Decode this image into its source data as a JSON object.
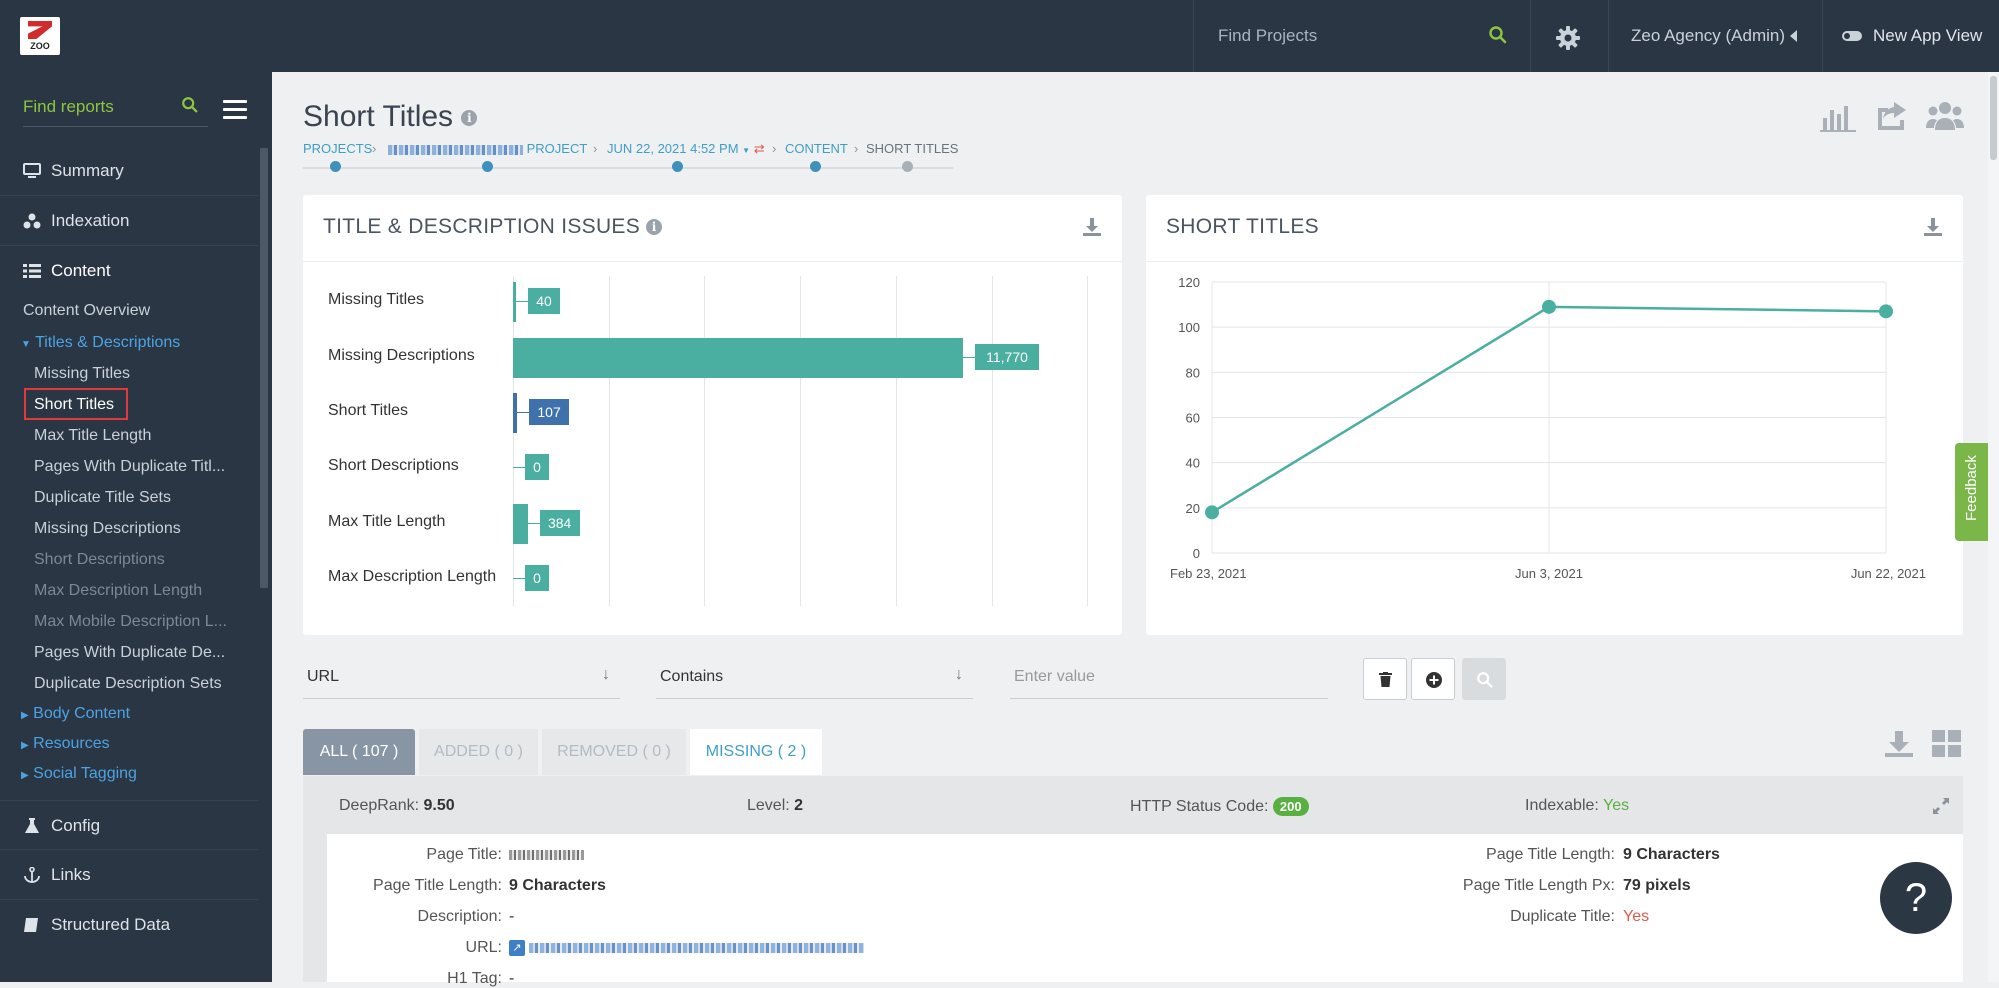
{
  "topbar": {
    "logo_text": "ZOO",
    "search_placeholder": "Find Projects",
    "account_label": "Zeo Agency (Admin)",
    "new_app_view_label": "New App View"
  },
  "sidebar": {
    "find_placeholder": "Find reports",
    "sections": [
      {
        "label": "Summary",
        "icon": "monitor-icon"
      },
      {
        "label": "Indexation",
        "icon": "network-icon"
      },
      {
        "label": "Content",
        "icon": "list-icon"
      }
    ],
    "content_overview": "Content Overview",
    "titles_group": "Titles & Descriptions",
    "title_items": [
      "Missing Titles",
      "Short Titles",
      "Max Title Length",
      "Pages With Duplicate Titl...",
      "Duplicate Title Sets",
      "Missing Descriptions",
      "Short Descriptions",
      "Max Description Length",
      "Max Mobile Description L...",
      "Pages With Duplicate De...",
      "Duplicate Description Sets"
    ],
    "groups": [
      "Body Content",
      "Resources",
      "Social Tagging"
    ],
    "bottom_sections": [
      {
        "label": "Config",
        "icon": "flask-icon"
      },
      {
        "label": "Links",
        "icon": "anchor-icon"
      },
      {
        "label": "Structured Data",
        "icon": "book-icon"
      }
    ],
    "active_item": "Short Titles"
  },
  "page": {
    "title": "Short Titles",
    "breadcrumb": [
      "PROJECTS",
      "PROJECT",
      "JUN 22, 2021 4:52 PM",
      "CONTENT",
      "SHORT TITLES"
    ]
  },
  "issues_card": {
    "title": "TITLE & DESCRIPTION ISSUES"
  },
  "short_titles_card": {
    "title": "SHORT TITLES"
  },
  "chart_data": [
    {
      "type": "bar",
      "orientation": "horizontal",
      "categories": [
        "Missing Titles",
        "Missing Descriptions",
        "Short Titles",
        "Short Descriptions",
        "Max Title Length",
        "Max Description Length"
      ],
      "values": [
        40,
        11770,
        107,
        0,
        384,
        0
      ],
      "value_labels": [
        "40",
        "11,770",
        "107",
        "0",
        "384",
        "0"
      ],
      "colors": [
        "#4aaea1",
        "#4aaea1",
        "#3f72ad",
        "#4aaea1",
        "#4aaea1",
        "#4aaea1"
      ],
      "grid": true
    },
    {
      "type": "line",
      "x": [
        "Feb 23, 2021",
        "Jun 3, 2021",
        "Jun 22, 2021"
      ],
      "y": [
        18,
        109,
        107
      ],
      "ylim": [
        0,
        120
      ],
      "yticks": [
        0,
        20,
        40,
        60,
        80,
        100,
        120
      ],
      "color": "#4aaea1",
      "grid": true
    }
  ],
  "filters": {
    "field": "URL",
    "operator": "Contains",
    "value_placeholder": "Enter value"
  },
  "tabs": [
    {
      "label": "ALL ( 107 )",
      "active": true
    },
    {
      "label": "ADDED ( 0 )",
      "active": false
    },
    {
      "label": "REMOVED ( 0 )",
      "active": false
    },
    {
      "label": "MISSING ( 2 )",
      "active": false
    }
  ],
  "row": {
    "deeprank_label": "DeepRank:",
    "deeprank_value": "9.50",
    "level_label": "Level:",
    "level_value": "2",
    "http_label": "HTTP Status Code:",
    "http_value": "200",
    "indexable_label": "Indexable:",
    "indexable_value": "Yes"
  },
  "details_left": [
    {
      "key": "Page Title:",
      "value": ""
    },
    {
      "key": "Page Title Length:",
      "value": "9 Characters"
    },
    {
      "key": "Description:",
      "value": "-"
    },
    {
      "key": "URL:",
      "value": ""
    },
    {
      "key": "H1 Tag:",
      "value": "-"
    }
  ],
  "details_right": [
    {
      "key": "Page Title Length:",
      "value": "9 Characters"
    },
    {
      "key": "Page Title Length Px:",
      "value": "79 pixels"
    },
    {
      "key": "Duplicate Title:",
      "value": "Yes"
    }
  ],
  "feedback_label": "Feedback",
  "help_label": "?"
}
